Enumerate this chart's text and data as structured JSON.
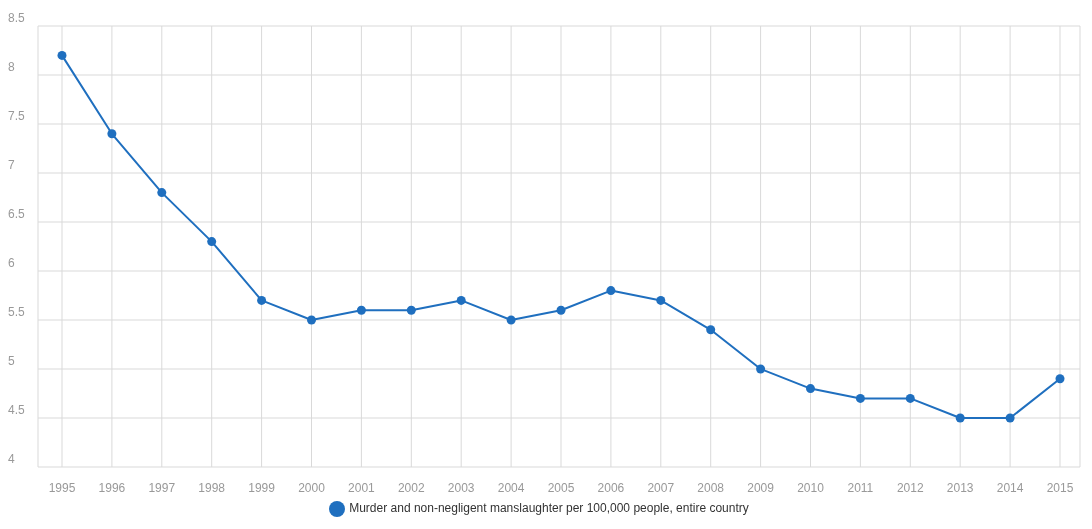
{
  "chart_data": {
    "type": "line",
    "categories": [
      "1995",
      "1996",
      "1997",
      "1998",
      "1999",
      "2000",
      "2001",
      "2002",
      "2003",
      "2004",
      "2005",
      "2006",
      "2007",
      "2008",
      "2009",
      "2010",
      "2011",
      "2012",
      "2013",
      "2014",
      "2015"
    ],
    "series": [
      {
        "name": "Murder and non-negligent manslaughter per 100,000 people, entire country",
        "color": "#1f6fbf",
        "values": [
          8.2,
          7.4,
          6.8,
          6.3,
          5.7,
          5.5,
          5.6,
          5.6,
          5.7,
          5.5,
          5.6,
          5.8,
          5.7,
          5.4,
          5.0,
          4.8,
          4.7,
          4.7,
          4.5,
          4.5,
          4.9
        ]
      }
    ],
    "ylim": [
      4,
      8.5
    ],
    "yticks": [
      4,
      4.5,
      5,
      5.5,
      6,
      6.5,
      7,
      7.5,
      8,
      8.5
    ],
    "grid": true,
    "legend": "bottom",
    "marker": "circle",
    "line_style": "solid"
  }
}
